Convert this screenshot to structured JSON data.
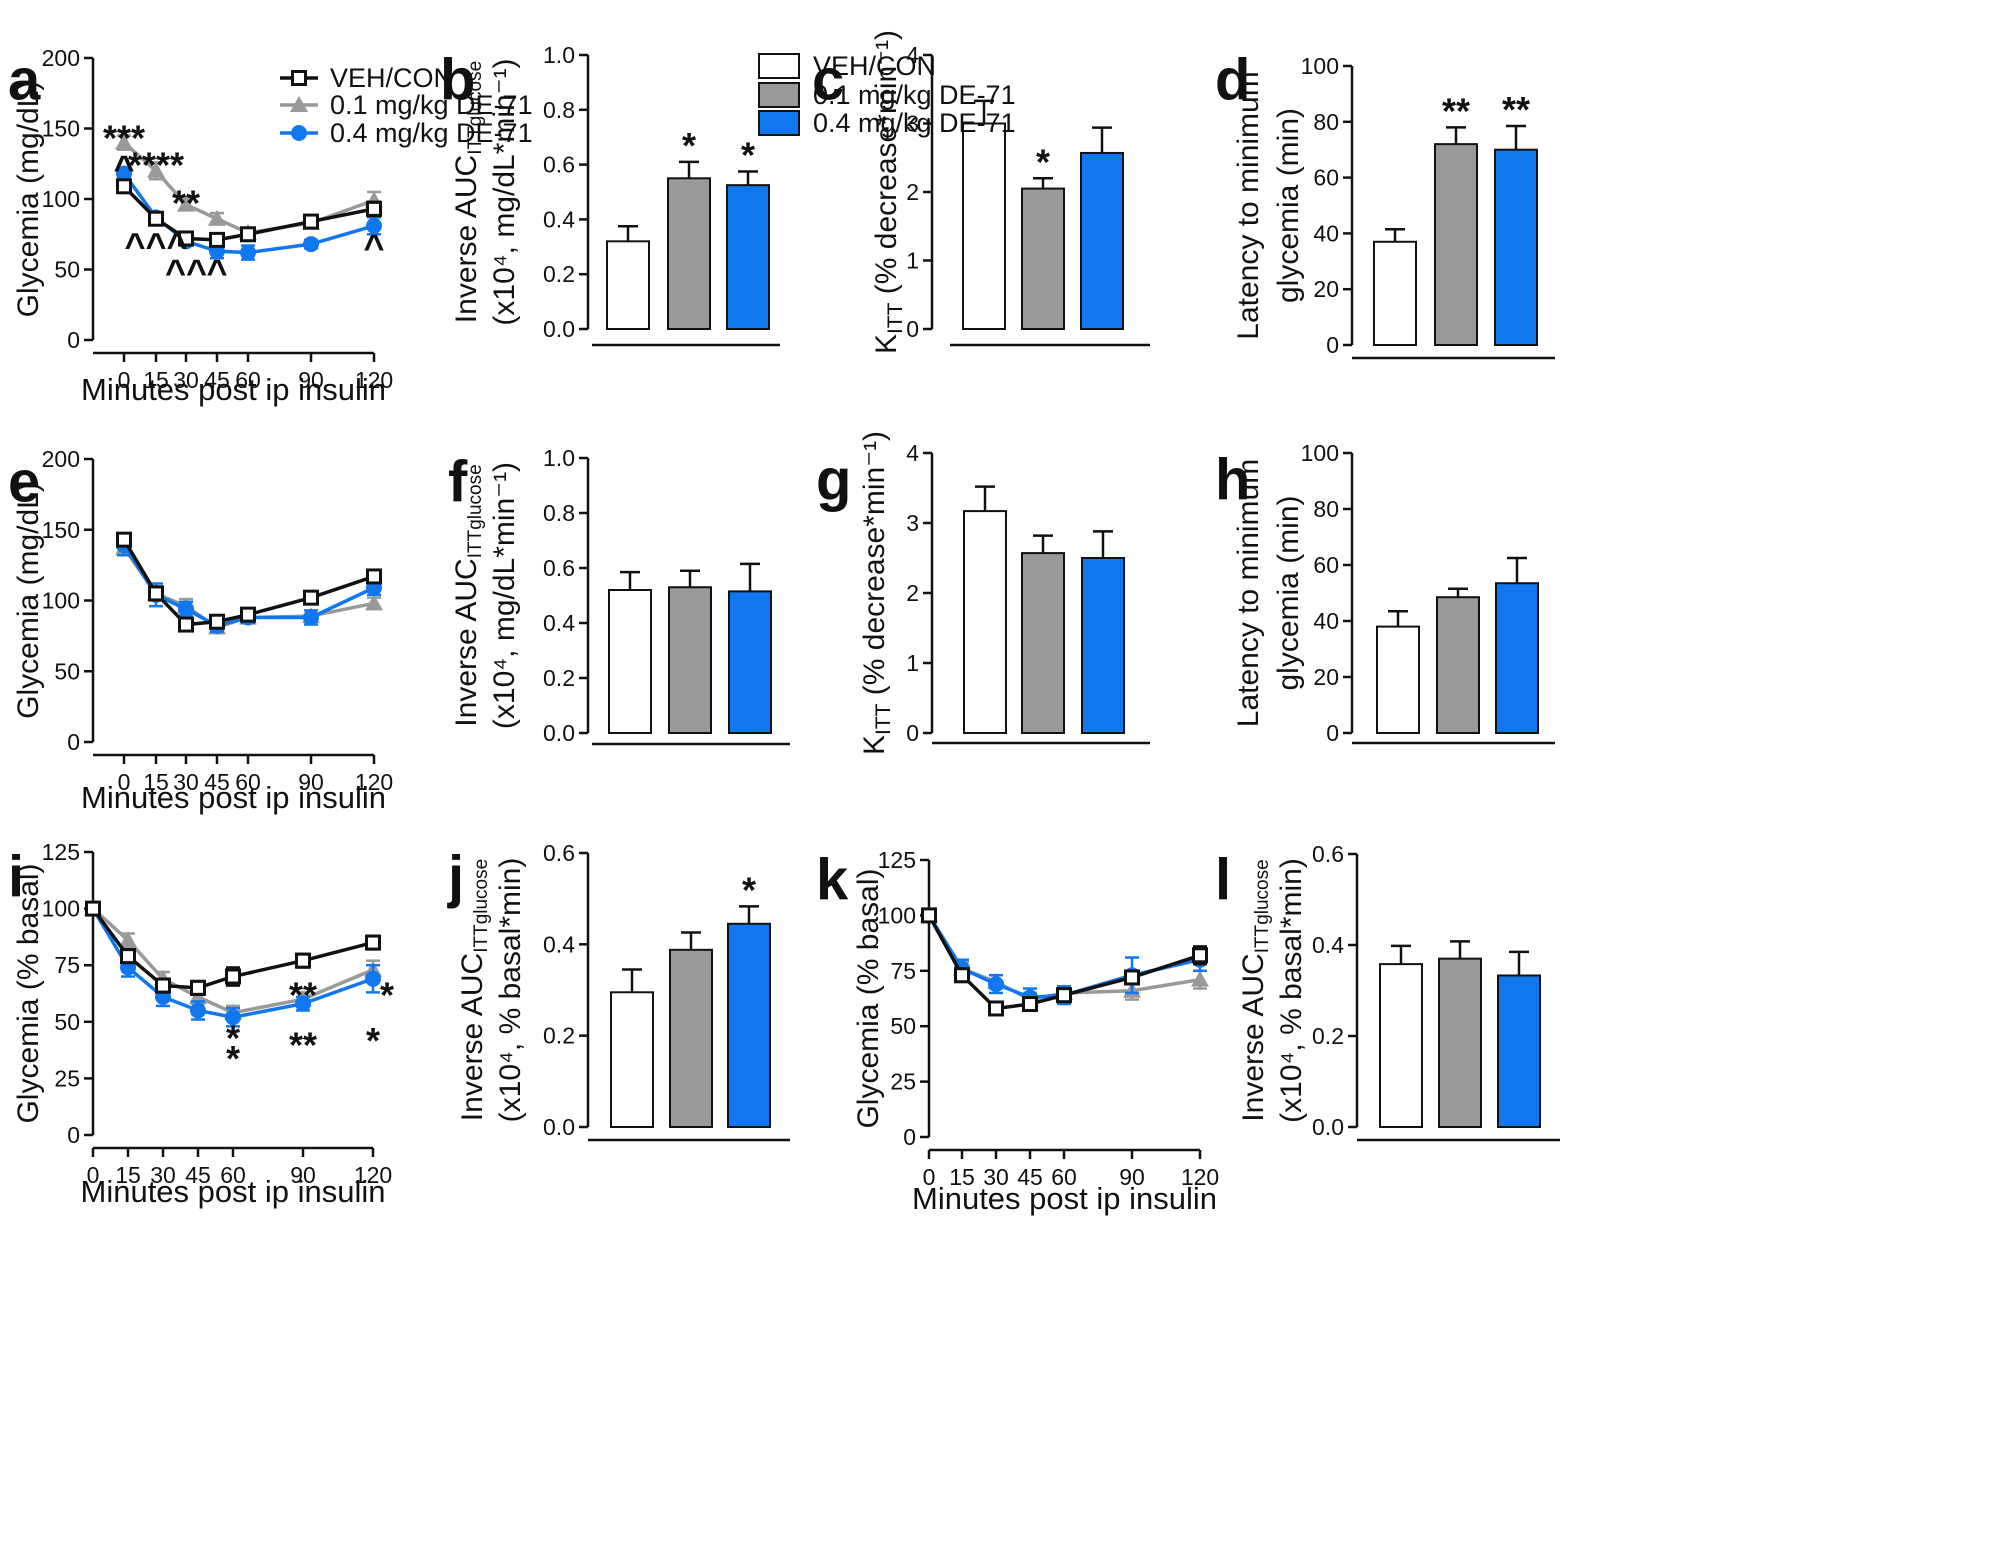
{
  "legend": {
    "series": [
      {
        "key": "veh",
        "name": "VEH/CON",
        "color": "#ffffff",
        "line": "#111111",
        "marker": "open-square"
      },
      {
        "key": "low",
        "name": "0.1 mg/kg DE-71",
        "color": "#999999",
        "line": "#999999",
        "marker": "triangle"
      },
      {
        "key": "high",
        "name": "0.4 mg/kg DE-71",
        "color": "#1177ee",
        "line": "#1177ee",
        "marker": "circle"
      }
    ]
  },
  "chart_data": [
    {
      "panel": "a",
      "type": "line",
      "xlabel": "Minutes post ip insulin",
      "ylabel": "Glycemia (mg/dL)",
      "x": [
        0,
        15,
        30,
        45,
        60,
        90,
        120
      ],
      "x_ticks": [
        0,
        15,
        30,
        45,
        60,
        90,
        120
      ],
      "y_ticks": [
        0,
        50,
        100,
        150,
        200
      ],
      "ylim": [
        0,
        200
      ],
      "legend": true,
      "series": [
        {
          "name": "VEH/CON",
          "values": [
            109,
            86,
            72,
            71,
            75,
            84,
            93
          ],
          "errors": [
            3,
            3,
            3,
            3,
            3,
            3,
            5
          ]
        },
        {
          "name": "0.1 mg/kg DE-71",
          "values": [
            140,
            120,
            96,
            86,
            76,
            83,
            99
          ],
          "errors": [
            5,
            6,
            4,
            4,
            3,
            4,
            6
          ]
        },
        {
          "name": "0.4 mg/kg DE-71",
          "values": [
            118,
            87,
            70,
            63,
            62,
            68,
            81
          ],
          "errors": [
            3,
            3,
            3,
            5,
            5,
            3,
            6
          ]
        }
      ],
      "annotations": [
        {
          "text": "***",
          "x": 0,
          "y": 150,
          "series": "0.1 mg/kg DE-71"
        },
        {
          "text": "****",
          "x": 15,
          "y": 131,
          "series": "0.1 mg/kg DE-71"
        },
        {
          "text": "**",
          "x": 30,
          "y": 104,
          "series": "0.1 mg/kg DE-71"
        },
        {
          "text": "^",
          "x": 0,
          "y": 126,
          "series": "0.4 mg/kg DE-71"
        },
        {
          "text": "^^^",
          "x": 15,
          "y": 71,
          "series": "0.4 mg/kg DE-71"
        },
        {
          "text": "^^",
          "x": 30,
          "y": 52,
          "series": "0.4 mg/kg DE-71"
        },
        {
          "text": "^",
          "x": 45,
          "y": 52,
          "series": "0.4 mg/kg DE-71"
        },
        {
          "text": "^",
          "x": 120,
          "y": 70,
          "series": "0.4 mg/kg DE-71"
        }
      ]
    },
    {
      "panel": "b",
      "type": "bar",
      "ylabel_main": "Inverse AUC",
      "ylabel_sub": "ITTglucose",
      "ylabel_line2": "(x10⁴, mg/dL*min⁻¹)",
      "categories": [
        "VEH/CON",
        "0.1 mg/kg DE-71",
        "0.4 mg/kg DE-71"
      ],
      "values": [
        0.32,
        0.55,
        0.525
      ],
      "errors": [
        0.055,
        0.06,
        0.05
      ],
      "sig": [
        "",
        "*",
        "*"
      ],
      "ylim": [
        0,
        1.0
      ],
      "y_ticks": [
        "0.0",
        "0.2",
        "0.4",
        "0.6",
        "0.8",
        "1.0"
      ],
      "legend": true
    },
    {
      "panel": "c",
      "type": "bar",
      "ylabel_main": "K",
      "ylabel_sub": "ITT",
      "ylabel_rest": " (% decrease*min⁻¹)",
      "categories": [
        "VEH/CON",
        "0.1 mg/kg DE-71",
        "0.4 mg/kg DE-71"
      ],
      "values": [
        3.0,
        2.05,
        2.57
      ],
      "errors": [
        0.33,
        0.15,
        0.37
      ],
      "sig": [
        "",
        "*",
        ""
      ],
      "ylim": [
        0,
        4
      ],
      "y_ticks": [
        "0",
        "1",
        "2",
        "3",
        "4"
      ]
    },
    {
      "panel": "d",
      "type": "bar",
      "ylabel_line1": "Latency to minimum",
      "ylabel_line2": "glycemia  (min)",
      "categories": [
        "VEH/CON",
        "0.1 mg/kg DE-71",
        "0.4 mg/kg DE-71"
      ],
      "values": [
        37,
        72,
        70
      ],
      "errors": [
        4.5,
        6,
        8.5
      ],
      "sig": [
        "",
        "**",
        "**"
      ],
      "ylim": [
        0,
        100
      ],
      "y_ticks": [
        "0",
        "20",
        "40",
        "60",
        "80",
        "100"
      ]
    },
    {
      "panel": "e",
      "type": "line",
      "xlabel": "Minutes post ip insulin",
      "ylabel": "Glycemia (mg/dL)",
      "x": [
        0,
        15,
        30,
        45,
        60,
        90,
        120
      ],
      "x_ticks": [
        0,
        15,
        30,
        45,
        60,
        90,
        120
      ],
      "y_ticks": [
        0,
        50,
        100,
        150,
        200
      ],
      "ylim": [
        0,
        200
      ],
      "series": [
        {
          "name": "VEH/CON",
          "values": [
            143,
            105,
            83,
            85,
            90,
            102,
            117
          ],
          "errors": [
            3,
            4,
            4,
            3,
            3,
            3,
            3
          ]
        },
        {
          "name": "0.1 mg/kg DE-71",
          "values": [
            137,
            105,
            96,
            81,
            88,
            89,
            98
          ],
          "errors": [
            5,
            5,
            5,
            4,
            4,
            4,
            4
          ]
        },
        {
          "name": "0.4 mg/kg DE-71",
          "values": [
            139,
            104,
            94,
            82,
            88,
            88,
            109
          ],
          "errors": [
            7,
            8,
            5,
            4,
            4,
            5,
            5
          ]
        }
      ],
      "annotations": []
    },
    {
      "panel": "f",
      "type": "bar",
      "ylabel_main": "Inverse AUC",
      "ylabel_sub": "ITTglucose",
      "ylabel_line2": "(x10⁴, mg/dL*min⁻¹)",
      "categories": [
        "VEH/CON",
        "0.1 mg/kg DE-71",
        "0.4 mg/kg DE-71"
      ],
      "values": [
        0.52,
        0.53,
        0.515
      ],
      "errors": [
        0.065,
        0.06,
        0.1
      ],
      "sig": [
        "",
        "",
        ""
      ],
      "ylim": [
        0,
        1.0
      ],
      "y_ticks": [
        "0.0",
        "0.2",
        "0.4",
        "0.6",
        "0.8",
        "1.0"
      ]
    },
    {
      "panel": "g",
      "type": "bar",
      "ylabel_main": "K",
      "ylabel_sub": "ITT",
      "ylabel_rest": " (% decrease*min⁻¹)",
      "categories": [
        "VEH/CON",
        "0.1 mg/kg DE-71",
        "0.4 mg/kg DE-71"
      ],
      "values": [
        3.17,
        2.57,
        2.5
      ],
      "errors": [
        0.35,
        0.25,
        0.38
      ],
      "sig": [
        "",
        "",
        ""
      ],
      "ylim": [
        0,
        4
      ],
      "y_ticks": [
        "0",
        "1",
        "2",
        "3",
        "4"
      ]
    },
    {
      "panel": "h",
      "type": "bar",
      "ylabel_line1": "Latency to minimum",
      "ylabel_line2": "glycemia  (min)",
      "categories": [
        "VEH/CON",
        "0.1 mg/kg DE-71",
        "0.4 mg/kg DE-71"
      ],
      "values": [
        38,
        48.5,
        53.5
      ],
      "errors": [
        5.5,
        3,
        9
      ],
      "sig": [
        "",
        "",
        ""
      ],
      "ylim": [
        0,
        100
      ],
      "y_ticks": [
        "0",
        "20",
        "40",
        "60",
        "80",
        "100"
      ]
    },
    {
      "panel": "i",
      "type": "line",
      "xlabel": "Minutes post ip insulin",
      "ylabel": "Glycemia (% basal)",
      "x": [
        0,
        15,
        30,
        45,
        60,
        90,
        120
      ],
      "x_ticks": [
        0,
        15,
        30,
        45,
        60,
        90,
        120
      ],
      "y_ticks": [
        0,
        25,
        50,
        75,
        100,
        125
      ],
      "ylim": [
        0,
        125
      ],
      "series": [
        {
          "name": "VEH/CON",
          "values": [
            100,
            79,
            66,
            65,
            70,
            77,
            85
          ],
          "errors": [
            1,
            3,
            3,
            3,
            4,
            3,
            3
          ]
        },
        {
          "name": "0.1 mg/kg DE-71",
          "values": [
            100,
            86,
            69,
            61,
            54,
            60,
            73
          ],
          "errors": [
            1,
            3,
            3,
            3,
            3,
            3,
            4
          ]
        },
        {
          "name": "0.4 mg/kg DE-71",
          "values": [
            100,
            74,
            61,
            55,
            52,
            58,
            69
          ],
          "errors": [
            1,
            4,
            4,
            4,
            4,
            3,
            6
          ]
        }
      ],
      "annotations": [
        {
          "text": "*",
          "x": 60,
          "y": 47,
          "series": "0.1 mg/kg DE-71"
        },
        {
          "text": "*",
          "x": 60,
          "y": 38,
          "series": "0.4 mg/kg DE-71"
        },
        {
          "text": "**",
          "x": 90,
          "y": 66,
          "series": "0.1 mg/kg DE-71"
        },
        {
          "text": "**",
          "x": 90,
          "y": 44,
          "series": "0.4 mg/kg DE-71"
        },
        {
          "text": "*",
          "x": 126,
          "y": 66,
          "series": "0.1 mg/kg DE-71"
        },
        {
          "text": "*",
          "x": 120,
          "y": 46,
          "series": "0.4 mg/kg DE-71"
        }
      ]
    },
    {
      "panel": "j",
      "type": "bar",
      "ylabel_main": "Inverse AUC",
      "ylabel_sub": "ITTglucose",
      "ylabel_line2": "(x10⁴, % basal*min)",
      "categories": [
        "VEH/CON",
        "0.1 mg/kg DE-71",
        "0.4 mg/kg DE-71"
      ],
      "values": [
        0.295,
        0.388,
        0.445
      ],
      "errors": [
        0.05,
        0.038,
        0.038
      ],
      "sig": [
        "",
        "",
        "*"
      ],
      "ylim": [
        0,
        0.6
      ],
      "y_ticks": [
        "0.0",
        "0.2",
        "0.4",
        "0.6"
      ]
    },
    {
      "panel": "k",
      "type": "line",
      "xlabel": "Minutes post ip insulin",
      "ylabel": "Glycemia (% basal)",
      "x": [
        0,
        15,
        30,
        45,
        60,
        90,
        120
      ],
      "x_ticks": [
        0,
        15,
        30,
        45,
        60,
        90,
        120
      ],
      "y_ticks": [
        0,
        25,
        50,
        75,
        100,
        125
      ],
      "ylim": [
        0,
        125
      ],
      "series": [
        {
          "name": "VEH/CON",
          "values": [
            100,
            73,
            58,
            60,
            64,
            72,
            82
          ],
          "errors": [
            1,
            3,
            2,
            3,
            3,
            3,
            4
          ]
        },
        {
          "name": "0.1 mg/kg DE-71",
          "values": [
            100,
            76,
            70,
            62,
            65,
            66,
            71
          ],
          "errors": [
            1,
            3,
            3,
            3,
            3,
            4,
            4
          ]
        },
        {
          "name": "0.4 mg/kg DE-71",
          "values": [
            100,
            76,
            69,
            63,
            64,
            73,
            80
          ],
          "errors": [
            1,
            4,
            4,
            4,
            4,
            8,
            5
          ]
        }
      ],
      "annotations": []
    },
    {
      "panel": "l",
      "type": "bar",
      "ylabel_main": "Inverse AUC",
      "ylabel_sub": "ITTglucose",
      "ylabel_line2": "(x10⁴, % basal*min)",
      "categories": [
        "VEH/CON",
        "0.1 mg/kg DE-71",
        "0.4 mg/kg DE-71"
      ],
      "values": [
        0.358,
        0.37,
        0.333
      ],
      "errors": [
        0.04,
        0.038,
        0.052
      ],
      "sig": [
        "",
        "",
        ""
      ],
      "ylim": [
        0,
        0.6
      ],
      "y_ticks": [
        "0.0",
        "0.2",
        "0.4",
        "0.6"
      ]
    }
  ]
}
